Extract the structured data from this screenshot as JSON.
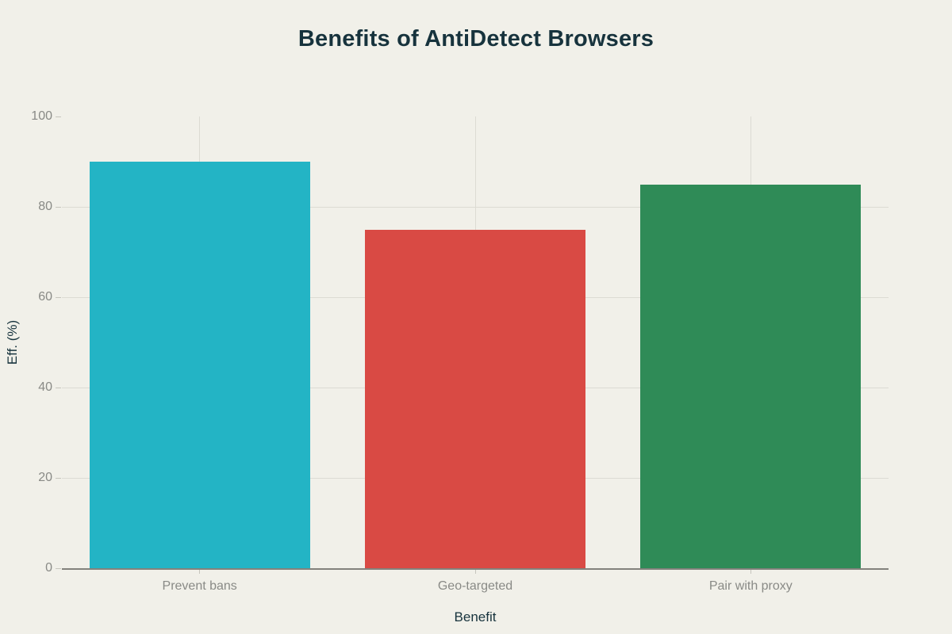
{
  "chart_data": {
    "type": "bar",
    "title": "Benefits of AntiDetect Browsers",
    "xlabel": "Benefit",
    "ylabel": "Eff. (%)",
    "categories": [
      "Prevent bans",
      "Geo-targeted",
      "Pair with proxy"
    ],
    "values": [
      90,
      75,
      85
    ],
    "bar_colors": [
      "#23b4c5",
      "#d94a44",
      "#2f8b57"
    ],
    "ylim": [
      0,
      100
    ],
    "yticks": [
      0,
      20,
      40,
      60,
      80,
      100
    ],
    "grid": true,
    "legend": "none",
    "colors": {
      "background": "#f1f0e9",
      "grid": "#dcdbd3",
      "axis_line": "#83827c",
      "tick": "#c6c5bd",
      "tick_label": "#898a86",
      "title_text": "#17333d"
    }
  }
}
